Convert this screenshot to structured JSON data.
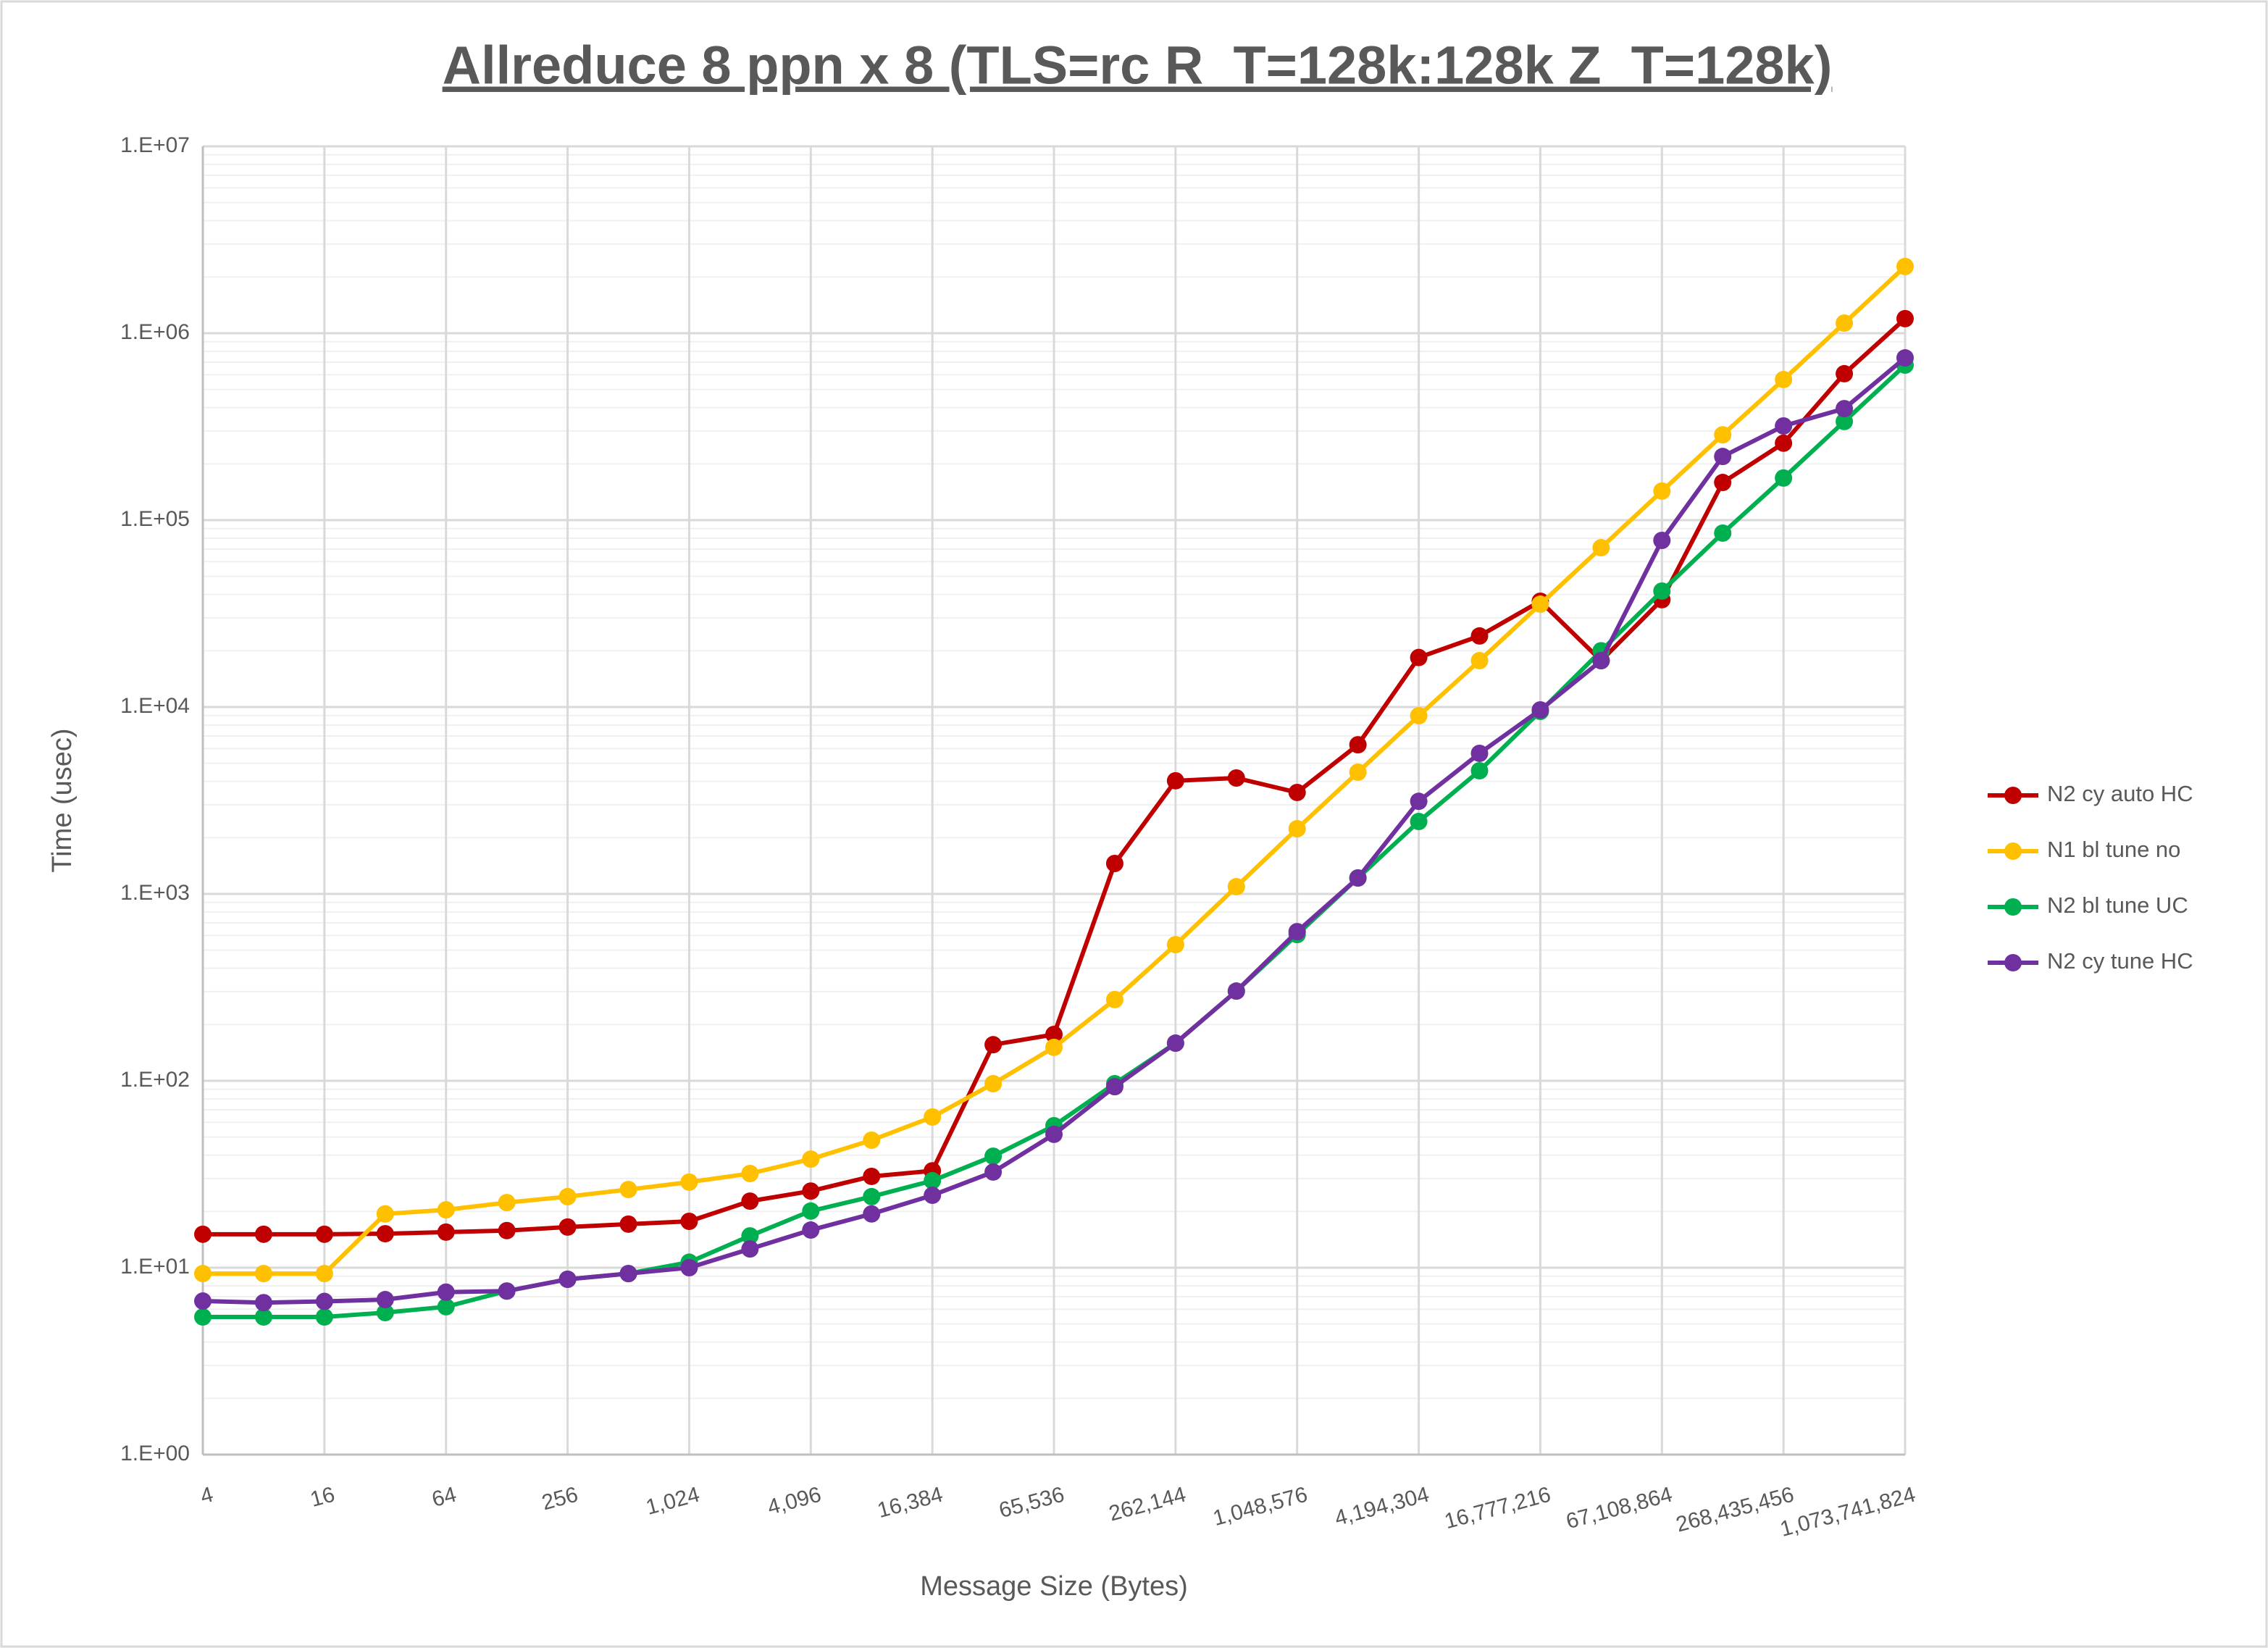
{
  "chart_data": {
    "type": "line",
    "title": "Allreduce 8 ppn x 8 (TLS=rc R_T=128k:128k Z_T=128k)",
    "x_label": "Message Size (Bytes)",
    "y_label": "Time (usec)",
    "x": [
      4,
      8,
      16,
      32,
      64,
      128,
      256,
      512,
      1024,
      2048,
      4096,
      8192,
      16384,
      32768,
      65536,
      131072,
      262144,
      524288,
      1048576,
      2097152,
      4194304,
      8388608,
      16777216,
      33554432,
      67108864,
      134217728,
      268435456,
      536870912,
      1073741824
    ],
    "x_log_base": 2,
    "xlim": [
      4,
      1073741824
    ],
    "xticks": [
      4,
      16,
      64,
      256,
      {
        "value": 1024,
        "label": "1,024"
      },
      {
        "value": 4096,
        "label": "4,096"
      },
      {
        "value": 16384,
        "label": "16,384"
      },
      {
        "value": 65536,
        "label": "65,536"
      },
      {
        "value": 262144,
        "label": "262,144"
      },
      {
        "value": 1048576,
        "label": "1,048,576"
      },
      {
        "value": 4194304,
        "label": "4,194,304"
      },
      {
        "value": 16777216,
        "label": "16,777,216"
      },
      {
        "value": 67108864,
        "label": "67,108,864"
      },
      {
        "value": 268435456,
        "label": "268,435,456"
      },
      {
        "value": 1073741824,
        "label": "1,073,741,824"
      }
    ],
    "y_log": true,
    "ylim": [
      1,
      10000000
    ],
    "yticks": [
      {
        "value": 1,
        "label": "1.E+00"
      },
      {
        "value": 10,
        "label": "1.E+01"
      },
      {
        "value": 100,
        "label": "1.E+02"
      },
      {
        "value": 1000,
        "label": "1.E+03"
      },
      {
        "value": 10000,
        "label": "1.E+04"
      },
      {
        "value": 100000,
        "label": "1.E+05"
      },
      {
        "value": 1000000,
        "label": "1.E+06"
      },
      {
        "value": 10000000,
        "label": "1.E+07"
      }
    ],
    "grid": true,
    "minor_grid": true,
    "legend": "right",
    "series": [
      {
        "name": "N2 cy auto HC",
        "color": "#c00000",
        "values": [
          15.1,
          15.1,
          15.1,
          15.2,
          15.5,
          15.8,
          16.5,
          17.1,
          17.7,
          22.7,
          25.7,
          30.8,
          33,
          156,
          177,
          1455,
          4030,
          4170,
          3490,
          6280,
          18400,
          24000,
          36800,
          17700,
          37500,
          159000,
          258000,
          607000,
          1197000
        ]
      },
      {
        "name": "N1 bl tune no",
        "color": "#ffc000",
        "values": [
          9.3,
          9.3,
          9.3,
          19.4,
          20.4,
          22.3,
          24,
          26.2,
          28.7,
          31.9,
          38.1,
          48.1,
          64,
          96.5,
          151,
          272,
          535,
          1093,
          2232,
          4480,
          8980,
          17700,
          35500,
          71200,
          143000,
          286000,
          565000,
          1133000,
          2275000
        ]
      },
      {
        "name": "N2 bl tune UC",
        "color": "#00b050",
        "values": [
          5.45,
          5.45,
          5.45,
          5.75,
          6.18,
          7.5,
          8.67,
          9.3,
          10.7,
          14.8,
          20.1,
          24,
          29.2,
          39.5,
          57.5,
          96.5,
          159,
          302,
          606,
          1217,
          2440,
          4560,
          9480,
          20000,
          41700,
          85200,
          168000,
          337000,
          675000
        ]
      },
      {
        "name": "N2 cy tune HC",
        "color": "#7030a0",
        "values": [
          6.63,
          6.5,
          6.6,
          6.75,
          7.4,
          7.5,
          8.67,
          9.3,
          10,
          12.6,
          15.9,
          19.4,
          24.4,
          32.5,
          51.7,
          93,
          159,
          302,
          628,
          1217,
          3130,
          5650,
          9650,
          17700,
          77900,
          219000,
          319000,
          395000,
          738000
        ]
      }
    ]
  }
}
